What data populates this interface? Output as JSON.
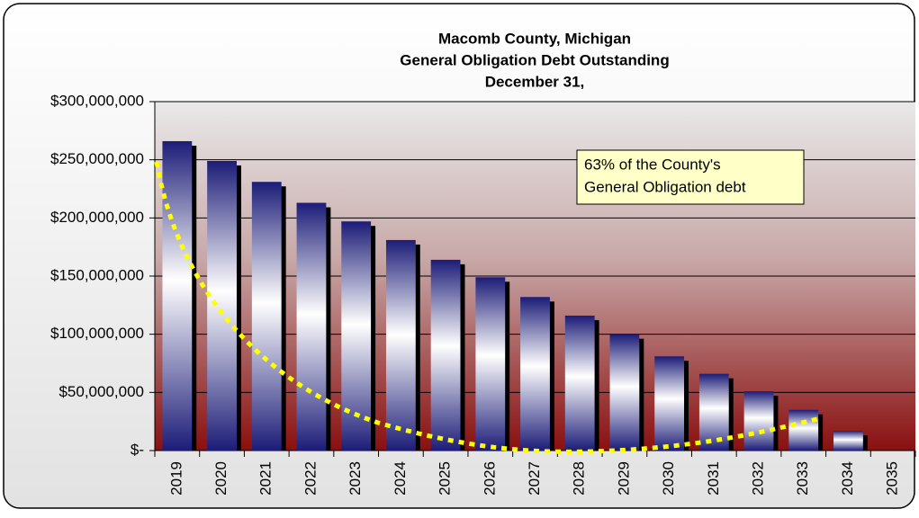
{
  "chart_data": {
    "type": "bar",
    "title": [
      "Macomb County, Michigan",
      "General Obligation Debt Outstanding",
      "December 31,"
    ],
    "annotation": [
      "63% of the County's",
      "General Obligation debt"
    ],
    "categories": [
      "2019",
      "2020",
      "2021",
      "2022",
      "2023",
      "2024",
      "2025",
      "2026",
      "2027",
      "2028",
      "2029",
      "2030",
      "2031",
      "2032",
      "2033",
      "2034",
      "2035"
    ],
    "values": [
      266000000,
      249000000,
      231000000,
      213000000,
      197000000,
      181000000,
      164000000,
      149000000,
      132000000,
      116000000,
      100000000,
      81000000,
      66000000,
      51000000,
      35000000,
      17000000,
      0
    ],
    "color": "#1c1c78",
    "ylim": [
      0,
      300000000
    ],
    "yticks": [
      {
        "value": 0,
        "label": "$-"
      },
      {
        "value": 50000000,
        "label": "$50,000,000"
      },
      {
        "value": 100000000,
        "label": "$100,000,000"
      },
      {
        "value": 150000000,
        "label": "$150,000,000"
      },
      {
        "value": 200000000,
        "label": "$200,000,000"
      },
      {
        "value": 250000000,
        "label": "$250,000,000"
      },
      {
        "value": 300000000,
        "label": "$300,000,000"
      }
    ],
    "grid": true
  }
}
